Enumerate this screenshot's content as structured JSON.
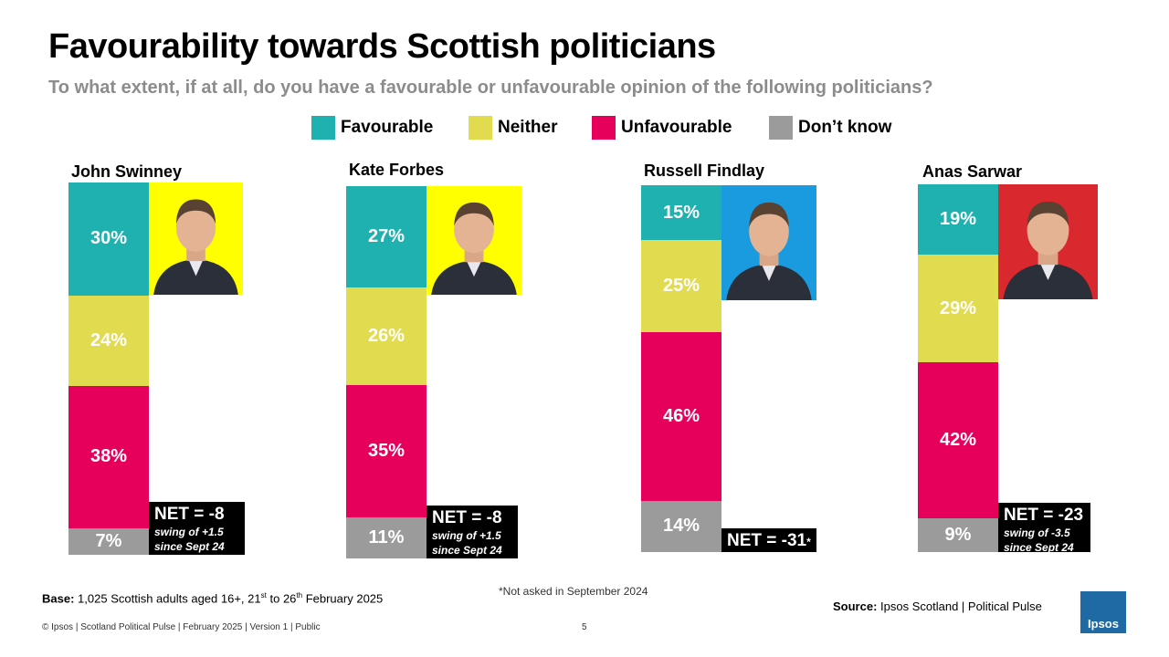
{
  "title": "Favourability towards Scottish politicians",
  "subtitle": "To what extent, if at all, do you have a favourable or unfavourable opinion of the following politicians?",
  "legend": [
    {
      "label": "Favourable",
      "color": "#1fb0b0"
    },
    {
      "label": "Neither",
      "color": "#e1db50"
    },
    {
      "label": "Unfavourable",
      "color": "#e6005c"
    },
    {
      "label": "Don’t know",
      "color": "#9b9b9b"
    }
  ],
  "chart_data": {
    "type": "bar",
    "stacked": true,
    "categories": [
      "John Swinney",
      "Kate Forbes",
      "Russell Findlay",
      "Anas Sarwar"
    ],
    "series": [
      {
        "name": "Favourable",
        "color": "#1fb0b0",
        "values": [
          30,
          27,
          15,
          19
        ]
      },
      {
        "name": "Neither",
        "color": "#e1db50",
        "values": [
          24,
          26,
          25,
          29
        ]
      },
      {
        "name": "Unfavourable",
        "color": "#e6005c",
        "values": [
          38,
          35,
          46,
          42
        ]
      },
      {
        "name": "Don’t know",
        "color": "#9b9b9b",
        "values": [
          7,
          11,
          14,
          9
        ]
      }
    ],
    "unit": "%",
    "legend_position": "top",
    "grid": false,
    "annotations": [
      {
        "category": "John Swinney",
        "net": "NET = -8",
        "swing": "swing of +1.5",
        "since": "since Sept 24"
      },
      {
        "category": "Kate Forbes",
        "net": "NET = -8",
        "swing": "swing of +1.5",
        "since": "since Sept 24"
      },
      {
        "category": "Russell Findlay",
        "net": "NET = -31",
        "swing": "",
        "since": "",
        "marker": "*"
      },
      {
        "category": "Anas Sarwar",
        "net": "NET = -23",
        "swing": "swing of -3.5",
        "since": "since Sept 24"
      }
    ],
    "photo_backgrounds": [
      "#ffff00",
      "#ffff00",
      "#1a9be0",
      "#d9282e"
    ]
  },
  "footnote": "*Not asked in September 2024",
  "base": {
    "label": "Base:",
    "text_before": "1,025 Scottish adults aged 16+, 21",
    "sup1": "st",
    "text_mid": "to 26",
    "sup2": "th",
    "text_after": "February 2025"
  },
  "source": {
    "label": "Source:",
    "text": "Ipsos Scotland | Political Pulse"
  },
  "footer": "© Ipsos | Scotland Political Pulse | February 2025 | Version 1 | Public",
  "page_number": "5",
  "logo_text": "Ipsos",
  "colors": {
    "logo_bg": "#1f6aa5",
    "subtitle": "#8c8c8c"
  }
}
